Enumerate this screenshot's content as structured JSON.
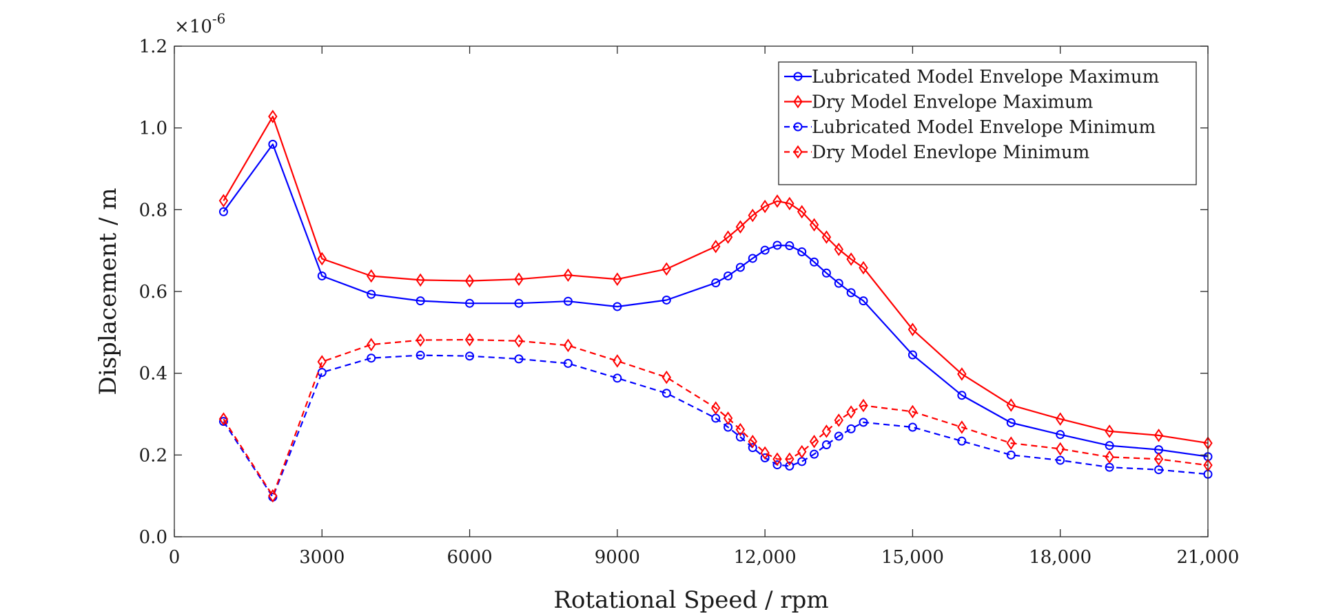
{
  "chart_data": {
    "type": "line",
    "title": "",
    "xlabel": "Rotational Speed / rpm",
    "ylabel": "Displacement / m",
    "y_multiplier": {
      "base": "×10",
      "exponent": "-6"
    },
    "xlim": [
      0,
      21000
    ],
    "ylim": [
      0,
      1.2
    ],
    "grid": false,
    "legend_position": "top-right",
    "x_ticks": [
      {
        "value": 0,
        "label": "0"
      },
      {
        "value": 3000,
        "label": "3000"
      },
      {
        "value": 6000,
        "label": "6000"
      },
      {
        "value": 9000,
        "label": "9000"
      },
      {
        "value": 12000,
        "label": "12,000"
      },
      {
        "value": 15000,
        "label": "15,000"
      },
      {
        "value": 18000,
        "label": "18,000"
      },
      {
        "value": 21000,
        "label": "21,000"
      }
    ],
    "y_ticks": [
      {
        "value": 0,
        "label": "0.0"
      },
      {
        "value": 0.2,
        "label": "0.2"
      },
      {
        "value": 0.4,
        "label": "0.4"
      },
      {
        "value": 0.6,
        "label": "0.6"
      },
      {
        "value": 0.8,
        "label": "0.8"
      },
      {
        "value": 1.0,
        "label": "1.0"
      },
      {
        "value": 1.2,
        "label": "1.2"
      }
    ],
    "series": [
      {
        "name": "Lubricated Model Envelope Maximum",
        "color": "#0000ff",
        "dash": "solid",
        "marker": "circle",
        "x": [
          1000,
          2000,
          3000,
          4000,
          5000,
          6000,
          7000,
          8000,
          9000,
          10000,
          11000,
          11250,
          11500,
          11750,
          12000,
          12250,
          12500,
          12750,
          13000,
          13250,
          13500,
          13750,
          14000,
          15000,
          16000,
          17000,
          18000,
          19000,
          20000,
          21000
        ],
        "y": [
          0.795,
          0.96,
          0.638,
          0.593,
          0.577,
          0.571,
          0.571,
          0.576,
          0.563,
          0.579,
          0.621,
          0.638,
          0.659,
          0.681,
          0.701,
          0.713,
          0.712,
          0.697,
          0.672,
          0.645,
          0.62,
          0.597,
          0.577,
          0.445,
          0.346,
          0.279,
          0.25,
          0.223,
          0.213,
          0.196
        ]
      },
      {
        "name": "Dry Model Envelope Maximum",
        "color": "#ff0000",
        "dash": "solid",
        "marker": "diamond",
        "x": [
          1000,
          2000,
          3000,
          4000,
          5000,
          6000,
          7000,
          8000,
          9000,
          10000,
          11000,
          11250,
          11500,
          11750,
          12000,
          12250,
          12500,
          12750,
          13000,
          13250,
          13500,
          13750,
          14000,
          15000,
          16000,
          17000,
          18000,
          19000,
          20000,
          21000
        ],
        "y": [
          0.822,
          1.028,
          0.68,
          0.638,
          0.628,
          0.626,
          0.63,
          0.64,
          0.63,
          0.655,
          0.71,
          0.733,
          0.758,
          0.786,
          0.808,
          0.821,
          0.815,
          0.795,
          0.763,
          0.733,
          0.703,
          0.679,
          0.658,
          0.507,
          0.398,
          0.322,
          0.288,
          0.258,
          0.248,
          0.229
        ]
      },
      {
        "name": "Lubricated Model Envelope Minimum",
        "color": "#0000ff",
        "dash": "dashed",
        "marker": "circle",
        "x": [
          1000,
          2000,
          3000,
          4000,
          5000,
          6000,
          7000,
          8000,
          9000,
          10000,
          11000,
          11250,
          11500,
          11750,
          12000,
          12250,
          12500,
          12750,
          13000,
          13250,
          13500,
          13750,
          14000,
          15000,
          16000,
          17000,
          18000,
          19000,
          20000,
          21000
        ],
        "y": [
          0.282,
          0.097,
          0.402,
          0.437,
          0.444,
          0.442,
          0.435,
          0.424,
          0.388,
          0.351,
          0.29,
          0.268,
          0.244,
          0.218,
          0.193,
          0.176,
          0.173,
          0.184,
          0.202,
          0.225,
          0.246,
          0.264,
          0.28,
          0.268,
          0.234,
          0.2,
          0.187,
          0.17,
          0.164,
          0.153
        ]
      },
      {
        "name": "Dry Model Enevlope Minimum",
        "color": "#ff0000",
        "dash": "dashed",
        "marker": "diamond",
        "x": [
          1000,
          2000,
          3000,
          4000,
          5000,
          6000,
          7000,
          8000,
          9000,
          10000,
          11000,
          11250,
          11500,
          11750,
          12000,
          12250,
          12500,
          12750,
          13000,
          13250,
          13500,
          13750,
          14000,
          15000,
          16000,
          17000,
          18000,
          19000,
          20000,
          21000
        ],
        "y": [
          0.288,
          0.1,
          0.428,
          0.47,
          0.481,
          0.482,
          0.479,
          0.468,
          0.43,
          0.39,
          0.315,
          0.29,
          0.262,
          0.233,
          0.205,
          0.19,
          0.19,
          0.208,
          0.233,
          0.258,
          0.285,
          0.305,
          0.321,
          0.306,
          0.268,
          0.229,
          0.215,
          0.195,
          0.19,
          0.175
        ]
      }
    ]
  }
}
